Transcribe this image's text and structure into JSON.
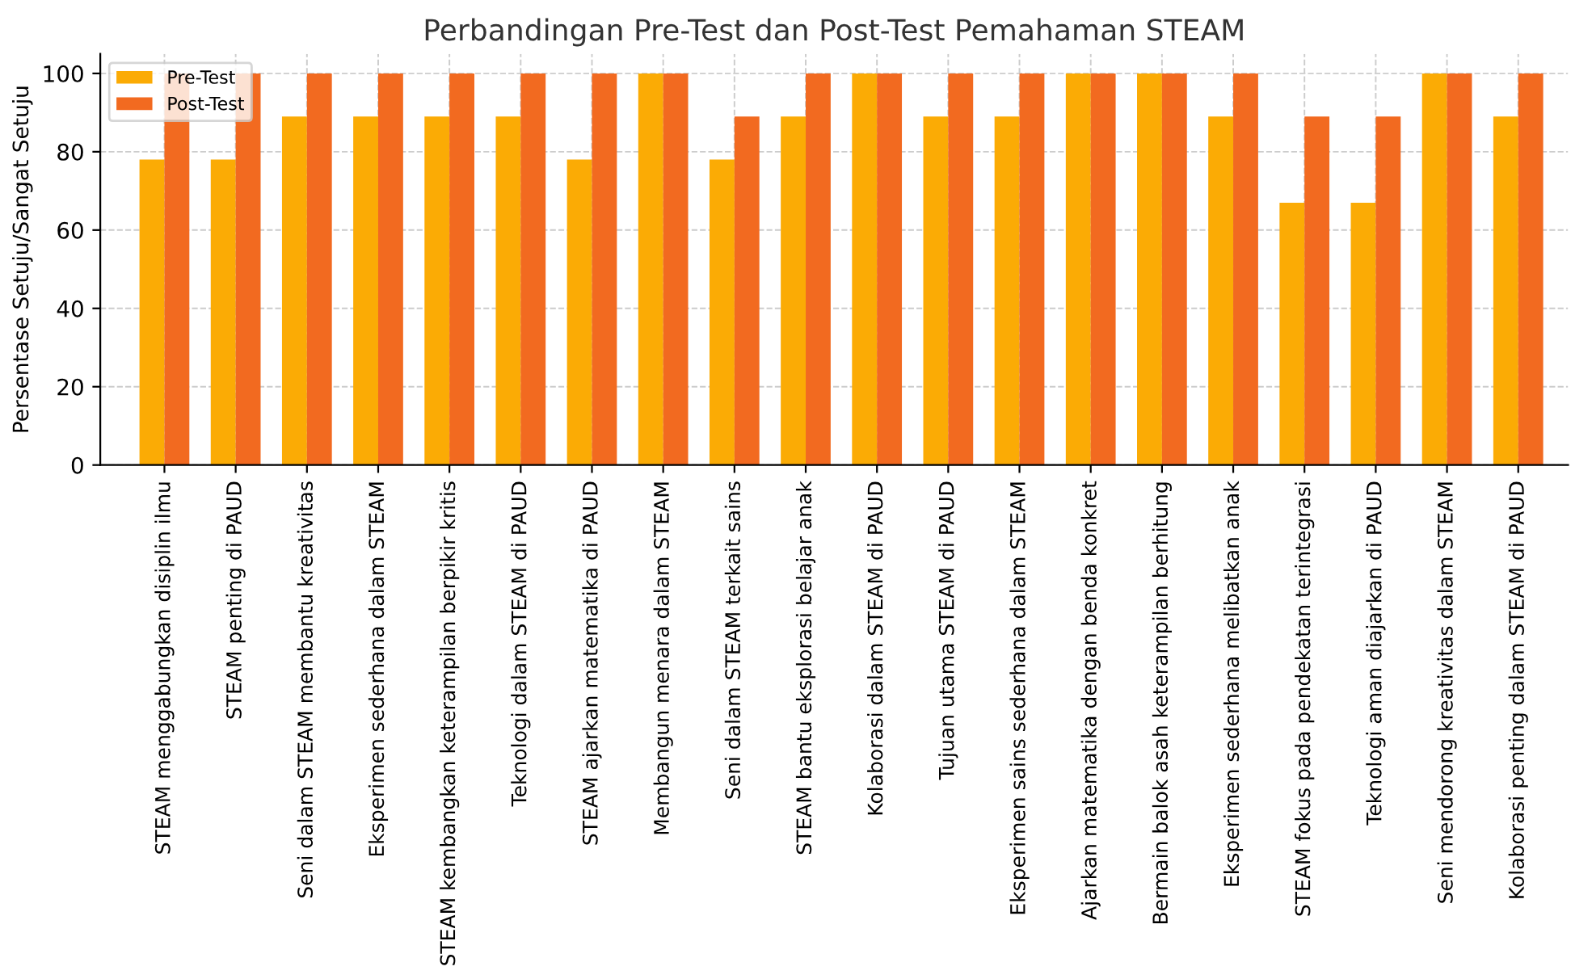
{
  "chart_data": {
    "type": "bar",
    "title": "Perbandingan Pre-Test dan Post-Test Pemahaman STEAM",
    "ylabel": "Persentase Setuju/Sangat Setuju",
    "categories": [
      "STEAM menggabungkan disiplin ilmu",
      "STEAM penting di PAUD",
      "Seni dalam STEAM membantu kreativitas",
      "Eksperimen sederhana dalam STEAM",
      "STEAM kembangkan keterampilan berpikir kritis",
      "Teknologi dalam STEAM di PAUD",
      "STEAM ajarkan matematika di PAUD",
      "Membangun menara dalam STEAM",
      "Seni dalam STEAM terkait sains",
      "STEAM bantu eksplorasi belajar anak",
      "Kolaborasi dalam STEAM di PAUD",
      "Tujuan utama STEAM di PAUD",
      "Eksperimen sains sederhana dalam STEAM",
      "Ajarkan matematika dengan benda konkret",
      "Bermain balok asah keterampilan berhitung",
      "Eksperimen sederhana melibatkan anak",
      "STEAM fokus pada pendekatan terintegrasi",
      "Teknologi aman diajarkan di PAUD",
      "Seni mendorong kreativitas dalam STEAM",
      "Kolaborasi penting dalam STEAM di PAUD"
    ],
    "series": [
      {
        "name": "Pre-Test",
        "color": "#fbab05",
        "values": [
          78,
          78,
          89,
          89,
          89,
          89,
          78,
          100,
          78,
          89,
          100,
          89,
          89,
          100,
          100,
          89,
          67,
          67,
          100,
          89
        ]
      },
      {
        "name": "Post-Test",
        "color": "#f26a20",
        "values": [
          100,
          100,
          100,
          100,
          100,
          100,
          100,
          100,
          89,
          100,
          100,
          100,
          100,
          100,
          100,
          100,
          89,
          89,
          100,
          100
        ]
      }
    ],
    "ylim": [
      0,
      105
    ],
    "yticks": [
      0,
      20,
      40,
      60,
      80,
      100
    ],
    "grid": true,
    "legend": "top left"
  }
}
